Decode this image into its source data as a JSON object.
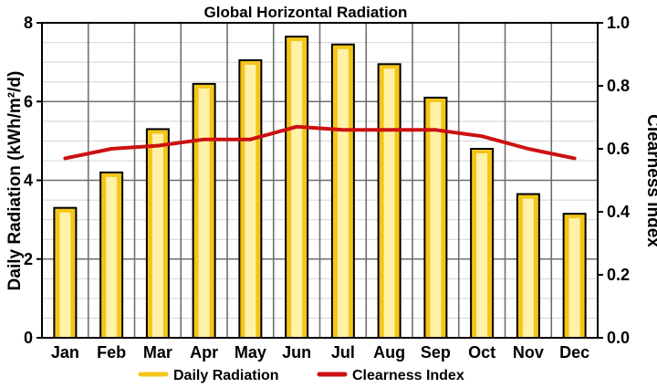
{
  "chart_data": {
    "type": "bar",
    "title": "Global Horizontal Radiation",
    "categories": [
      "Jan",
      "Feb",
      "Mar",
      "Apr",
      "May",
      "Jun",
      "Jul",
      "Aug",
      "Sep",
      "Oct",
      "Nov",
      "Dec"
    ],
    "ylabel": "Daily Radiation (kWh/m²/d)",
    "ylim": [
      0,
      8
    ],
    "yticks": [
      "0",
      "2",
      "4",
      "6",
      "8"
    ],
    "y2label": "Clearness Index",
    "y2lim": [
      0,
      1
    ],
    "y2ticks": [
      "0.0",
      "0.2",
      "0.4",
      "0.6",
      "0.8",
      "1.0"
    ],
    "grid": true,
    "legend_position": "bottom",
    "series": [
      {
        "name": "Daily Radiation",
        "kind": "bar",
        "axis": "left",
        "color": "#f5c518",
        "fill": "#fff2a8",
        "values": [
          3.3,
          4.2,
          5.3,
          6.45,
          7.05,
          7.65,
          7.45,
          6.95,
          6.1,
          4.8,
          3.65,
          3.15
        ]
      },
      {
        "name": "Clearness Index",
        "kind": "line",
        "axis": "right",
        "color": "#cc1111",
        "values": [
          0.57,
          0.6,
          0.61,
          0.63,
          0.63,
          0.67,
          0.66,
          0.66,
          0.66,
          0.64,
          0.6,
          0.57
        ]
      }
    ]
  }
}
